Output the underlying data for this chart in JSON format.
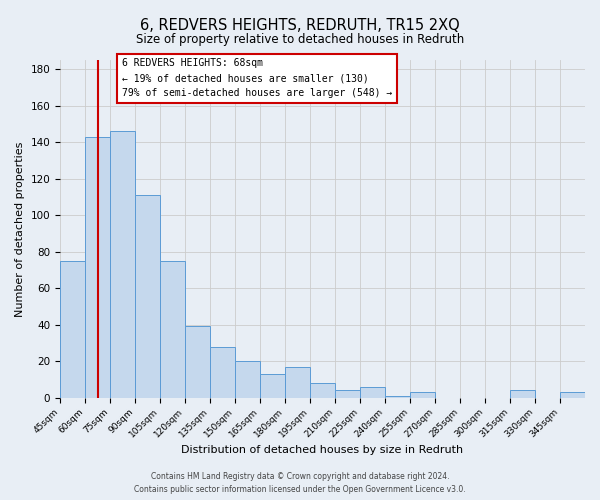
{
  "title": "6, REDVERS HEIGHTS, REDRUTH, TR15 2XQ",
  "subtitle": "Size of property relative to detached houses in Redruth",
  "xlabel": "Distribution of detached houses by size in Redruth",
  "ylabel": "Number of detached properties",
  "bin_edges": [
    45,
    60,
    75,
    90,
    105,
    120,
    135,
    150,
    165,
    180,
    195,
    210,
    225,
    240,
    255,
    270,
    285,
    300,
    315,
    330,
    345,
    360
  ],
  "bar_heights": [
    75,
    143,
    146,
    111,
    75,
    39,
    28,
    20,
    13,
    17,
    8,
    4,
    6,
    1,
    3,
    0,
    0,
    0,
    4,
    0,
    3
  ],
  "bar_color": "#c5d8ed",
  "bar_edge_color": "#5b9bd5",
  "red_line_x": 68,
  "red_line_color": "#cc0000",
  "annotation_title": "6 REDVERS HEIGHTS: 68sqm",
  "annotation_line1": "← 19% of detached houses are smaller (130)",
  "annotation_line2": "79% of semi-detached houses are larger (548) →",
  "annotation_box_color": "#ffffff",
  "annotation_box_edge": "#cc0000",
  "ylim": [
    0,
    185
  ],
  "yticks": [
    0,
    20,
    40,
    60,
    80,
    100,
    120,
    140,
    160,
    180
  ],
  "grid_color": "#cccccc",
  "background_color": "#e8eef5",
  "footer_line1": "Contains HM Land Registry data © Crown copyright and database right 2024.",
  "footer_line2": "Contains public sector information licensed under the Open Government Licence v3.0."
}
